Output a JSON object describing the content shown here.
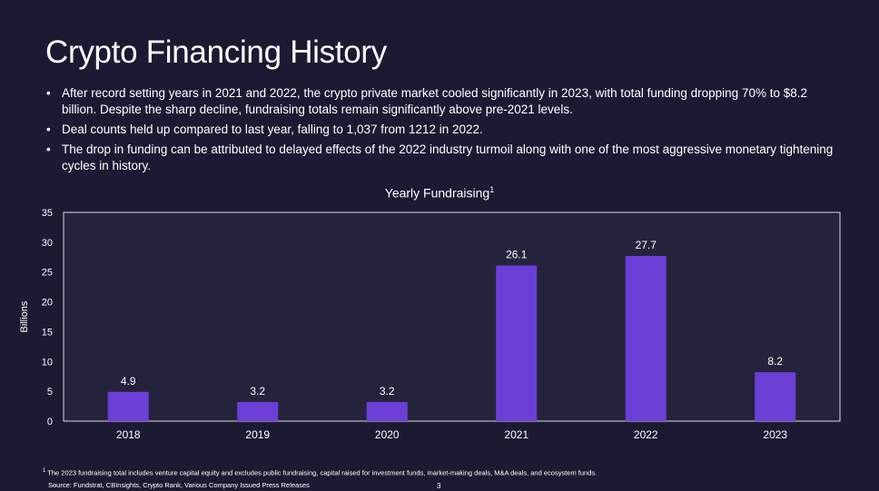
{
  "slide": {
    "title": "Crypto Financing History",
    "bullets": [
      "After record setting years in 2021 and 2022, the crypto private market cooled significantly in 2023, with total funding dropping 70% to $8.2 billion. Despite the sharp decline, fundraising totals remain significantly above pre-2021 levels.",
      "Deal counts held up compared to last year, falling to 1,037 from 1212 in 2022.",
      "The drop in funding can be attributed to delayed effects of the 2022 industry turmoil along with one of the most aggressive monetary tightening cycles in history."
    ],
    "footnote_marker": "1",
    "footnote": "The 2023 fundraising total includes venture capital equity and excludes public fundraising, capital raised for investment funds, market-making deals, M&A deals, and ecosystem funds.",
    "source": "Source: Fundstrat, CBInsights, Crypto Rank, Various Company Issued Press Releases",
    "page_number": "3"
  },
  "chart_data": {
    "type": "bar",
    "title": "Yearly Fundraising",
    "title_superscript": "1",
    "xlabel": "",
    "ylabel": "Billions",
    "categories": [
      "2018",
      "2019",
      "2020",
      "2021",
      "2022",
      "2023"
    ],
    "values": [
      4.9,
      3.2,
      3.2,
      26.1,
      27.7,
      8.2
    ],
    "data_labels": [
      "4.9",
      "3.2",
      "3.2",
      "26.1",
      "27.7",
      "8.2"
    ],
    "ylim": [
      0,
      35
    ],
    "yticks": [
      "0",
      "5",
      "10",
      "15",
      "20",
      "25",
      "30",
      "35"
    ],
    "grid": false,
    "legend": "none",
    "bar_color": "#6b3fd6",
    "plot_background": "#25233c"
  }
}
